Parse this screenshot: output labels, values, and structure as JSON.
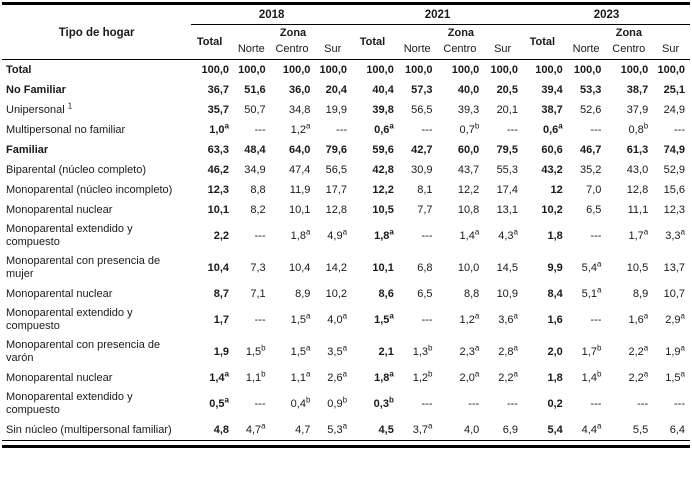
{
  "table": {
    "header": {
      "row_dimension_label": "Tipo de hogar",
      "year_groups": [
        "2018",
        "2021",
        "2023"
      ],
      "total_label": "Total",
      "zona_label": "Zona",
      "zone_labels": [
        "Norte",
        "Centro",
        "Sur"
      ]
    },
    "rows": [
      {
        "label": "Total",
        "bold": true,
        "cells": [
          "100,0",
          "100,0",
          "100,0",
          "100,0",
          "100,0",
          "100,0",
          "100,0",
          "100,0",
          "100,0",
          "100,0",
          "100,0",
          "100,0"
        ]
      },
      {
        "label": "No Familiar",
        "bold": true,
        "cells": [
          "36,7",
          "51,6",
          "36,0",
          "20,4",
          "40,4",
          "57,3",
          "40,0",
          "20,5",
          "39,4",
          "53,3",
          "38,7",
          "25,1"
        ]
      },
      {
        "label": "Unipersonal ^1",
        "bold": false,
        "cells": [
          "35,7",
          "50,7",
          "34,8",
          "19,9",
          "39,8",
          "56,5",
          "39,3",
          "20,1",
          "38,7",
          "52,6",
          "37,9",
          "24,9"
        ]
      },
      {
        "label": "Multipersonal no familiar",
        "bold": false,
        "cells": [
          "1,0^a",
          "---",
          "1,2^a",
          "---",
          "0,6^a",
          "---",
          "0,7^b",
          "---",
          "0,6^a",
          "---",
          "0,8^b",
          "---"
        ]
      },
      {
        "label": "Familiar",
        "bold": true,
        "cells": [
          "63,3",
          "48,4",
          "64,0",
          "79,6",
          "59,6",
          "42,7",
          "60,0",
          "79,5",
          "60,6",
          "46,7",
          "61,3",
          "74,9"
        ]
      },
      {
        "label": "Biparental (núcleo completo)",
        "bold": false,
        "cells": [
          "46,2",
          "34,9",
          "47,4",
          "56,5",
          "42,8",
          "30,9",
          "43,7",
          "55,3",
          "43,2",
          "35,2",
          "43,0",
          "52,9"
        ]
      },
      {
        "label": "Monoparental (núcleo incompleto)",
        "bold": false,
        "cells": [
          "12,3",
          "8,8",
          "11,9",
          "17,7",
          "12,2",
          "8,1",
          "12,2",
          "17,4",
          "12",
          "7,0",
          "12,8",
          "15,6"
        ]
      },
      {
        "label": "Monoparental nuclear",
        "bold": false,
        "cells": [
          "10,1",
          "8,2",
          "10,1",
          "12,8",
          "10,5",
          "7,7",
          "10,8",
          "13,1",
          "10,2",
          "6,5",
          "11,1",
          "12,3"
        ]
      },
      {
        "label": "Monoparental extendido y compuesto",
        "bold": false,
        "cells": [
          "2,2",
          "---",
          "1,8^a",
          "4,9^a",
          "1,8^a",
          "---",
          "1,4^a",
          "4,3^a",
          "1,8",
          "---",
          "1,7^a",
          "3,3^a"
        ]
      },
      {
        "label": "Monoparental con presencia de mujer",
        "bold": false,
        "cells": [
          "10,4",
          "7,3",
          "10,4",
          "14,2",
          "10,1",
          "6,8",
          "10,0",
          "14,5",
          "9,9",
          "5,4^a",
          "10,5",
          "13,7"
        ]
      },
      {
        "label": "Monoparental nuclear",
        "bold": false,
        "cells": [
          "8,7",
          "7,1",
          "8,9",
          "10,2",
          "8,6",
          "6,5",
          "8,8",
          "10,9",
          "8,4",
          "5,1^a",
          "8,9",
          "10,7"
        ]
      },
      {
        "label": "Monoparental extendido y compuesto",
        "bold": false,
        "cells": [
          "1,7",
          "---",
          "1,5^a",
          "4,0^a",
          "1,5^a",
          "---",
          "1,2^a",
          "3,6^a",
          "1,6",
          "---",
          "1,6^a",
          "2,9^a"
        ]
      },
      {
        "label": "Monoparental con presencia de varón",
        "bold": false,
        "cells": [
          "1,9",
          "1,5^b",
          "1,5^a",
          "3,5^a",
          "2,1",
          "1,3^b",
          "2,3^a",
          "2,8^a",
          "2,0",
          "1,7^b",
          "2,2^a",
          "1,9^a"
        ]
      },
      {
        "label": "Monoparental nuclear",
        "bold": false,
        "cells": [
          "1,4^a",
          "1,1^b",
          "1,1^a",
          "2,6^a",
          "1,8^a",
          "1,2^b",
          "2,0^a",
          "2,2^a",
          "1,8",
          "1,4^b",
          "2,2^a",
          "1,5^a"
        ]
      },
      {
        "label": "Monoparental extendido y compuesto",
        "bold": false,
        "cells": [
          "0,5^a",
          "---",
          "0,4^b",
          "0,9^b",
          "0,3^b",
          "---",
          "---",
          "---",
          "0,2",
          "---",
          "---",
          "---"
        ]
      },
      {
        "label": "Sin núcleo (multipersonal familiar)",
        "bold": false,
        "cells": [
          "4,8",
          "4,7^a",
          "4,7",
          "5,3^a",
          "4,5",
          "3,7^a",
          "4,0",
          "6,9",
          "5,4",
          "4,4^a",
          "5,5",
          "6,4"
        ]
      }
    ]
  }
}
